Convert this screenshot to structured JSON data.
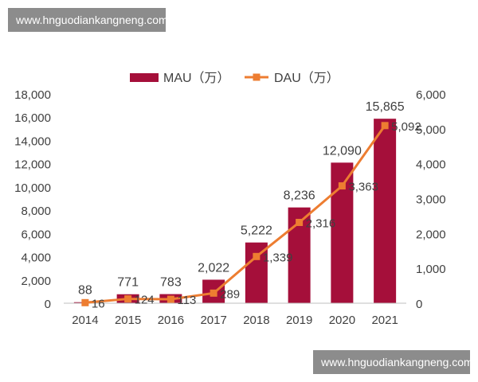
{
  "watermark_top": "www.hnguodiankangneng.com",
  "watermark_bottom": "www.hnguodiankangneng.com",
  "chart_data": {
    "type": "bar+line",
    "categories": [
      "2014",
      "2015",
      "2016",
      "2017",
      "2018",
      "2019",
      "2020",
      "2021"
    ],
    "series": [
      {
        "name": "MAU（万）",
        "type": "bar",
        "axis": "left",
        "color": "#a50f3a",
        "values": [
          88,
          771,
          783,
          2022,
          5222,
          8236,
          12090,
          15865
        ],
        "labels": [
          "88",
          "771",
          "783",
          "2,022",
          "5,222",
          "8,236",
          "12,090",
          "15,865"
        ]
      },
      {
        "name": "DAU（万）",
        "type": "line",
        "axis": "right",
        "color": "#ed7d31",
        "values": [
          16,
          124,
          113,
          289,
          1339,
          2316,
          3363,
          5092
        ],
        "labels": [
          "16",
          "124",
          "113",
          "289",
          "1,339",
          "2,316",
          "3,363",
          "5,092"
        ]
      }
    ],
    "y_left": {
      "range": [
        0,
        18000
      ],
      "ticks": [
        "0",
        "2,000",
        "4,000",
        "6,000",
        "8,000",
        "10,000",
        "12,000",
        "14,000",
        "16,000",
        "18,000"
      ]
    },
    "y_right": {
      "range": [
        0,
        6000
      ],
      "ticks": [
        "0",
        "1,000",
        "2,000",
        "3,000",
        "4,000",
        "5,000",
        "6,000"
      ]
    },
    "legend": "top-center",
    "grid": false
  }
}
